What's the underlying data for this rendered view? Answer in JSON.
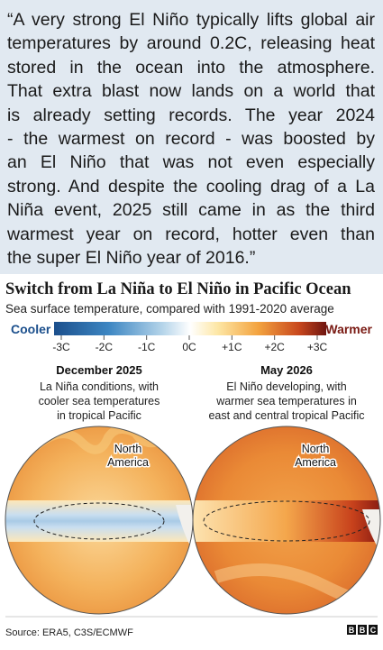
{
  "quote": {
    "lines": [
      "“A very strong El Niño typically lifts global air",
      "temperatures by around 0.2C, releasing heat",
      "stored in the ocean into the atmosphere.",
      "That extra blast now lands on a world that",
      "is already setting records. The year 2024",
      "- the warmest on record - was boosted by",
      "an El Niño that was not even especially",
      "strong. And despite the cooling drag of a La",
      "Niña event, 2025 still came in as the third",
      "warmest year on record, hotter even than",
      "the super El Niño year of 2016.”"
    ]
  },
  "graphic": {
    "title": "Switch from La Niña to El Niño in Pacific Ocean",
    "subtitle": "Sea surface temperature, compared with 1991-2020 average",
    "scale": {
      "low_label": "Cooler",
      "high_label": "Warmer",
      "ticks": [
        "-3C",
        "-2C",
        "-1C",
        "0C",
        "+1C",
        "+2C",
        "+3C"
      ]
    },
    "panels": [
      {
        "date": "December 2025",
        "description": [
          "La Niña conditions, with",
          "cooler sea temperatures",
          "in tropical Pacific"
        ],
        "map_label": [
          "North",
          "America"
        ]
      },
      {
        "date": "May 2026",
        "description": [
          "El Niño developing, with",
          "warmer sea temperatures in",
          "east and central tropical Pacific"
        ],
        "map_label": [
          "North",
          "America"
        ]
      }
    ]
  },
  "footer": {
    "source": "Source: ERA5, C3S/ECMWF",
    "logo": "BBC"
  }
}
